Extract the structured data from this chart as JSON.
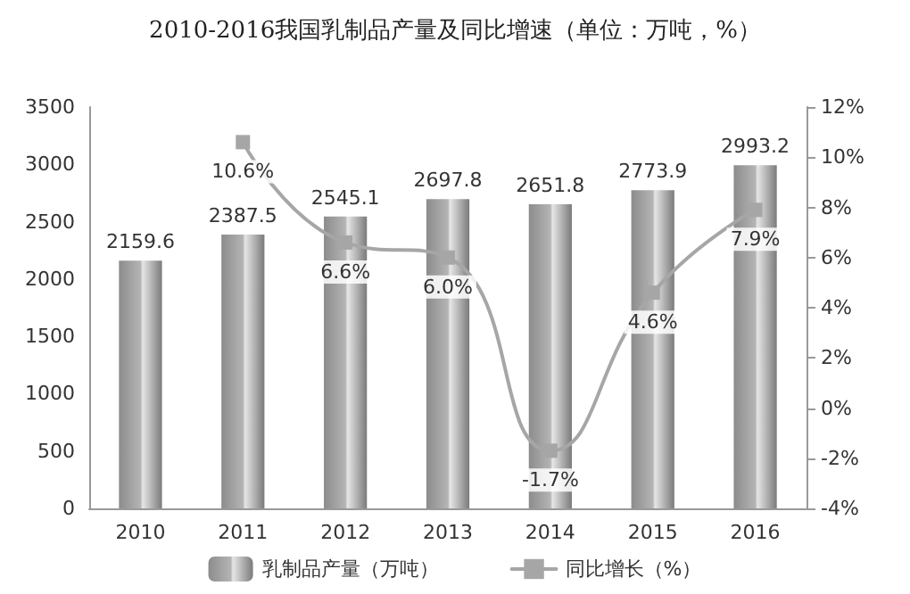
{
  "chart_data": {
    "type": "bar",
    "title": "2010-2016我国乳制品产量及同比增速（单位：万吨，%）",
    "categories": [
      "2010",
      "2011",
      "2012",
      "2013",
      "2014",
      "2015",
      "2016"
    ],
    "series": [
      {
        "name": "乳制品产量（万吨）",
        "color": "#b4b4b4",
        "values": [
          2159.6,
          2387.5,
          2545.1,
          2697.8,
          2651.8,
          2773.9,
          2993.2
        ]
      },
      {
        "name": "同比增长（%）",
        "type": "line",
        "axis": "y2",
        "color": "#a6a6a6",
        "values": [
          null,
          10.6,
          6.6,
          6.0,
          -1.7,
          4.6,
          7.9
        ],
        "value_labels": [
          null,
          "10.6%",
          "6.6%",
          "6.0%",
          "-1.7%",
          "4.6%",
          "7.9%"
        ]
      }
    ],
    "data_labels": true,
    "ylim": [
      0,
      3500
    ],
    "yticks": [
      0,
      500,
      1000,
      1500,
      2000,
      2500,
      3000,
      3500
    ],
    "y2lim": [
      -4,
      12
    ],
    "y2ticks": [
      {
        "value": -4,
        "label": "-4%"
      },
      {
        "value": -2,
        "label": "-2%"
      },
      {
        "value": 0,
        "label": "0%"
      },
      {
        "value": 2,
        "label": "2%"
      },
      {
        "value": 4,
        "label": "4%"
      },
      {
        "value": 6,
        "label": "6%"
      },
      {
        "value": 8,
        "label": "8%"
      },
      {
        "value": 10,
        "label": "10%"
      },
      {
        "value": 12,
        "label": "12%"
      }
    ],
    "grid": false,
    "legend": "bottom",
    "marker": "square",
    "line_style": "solid"
  }
}
